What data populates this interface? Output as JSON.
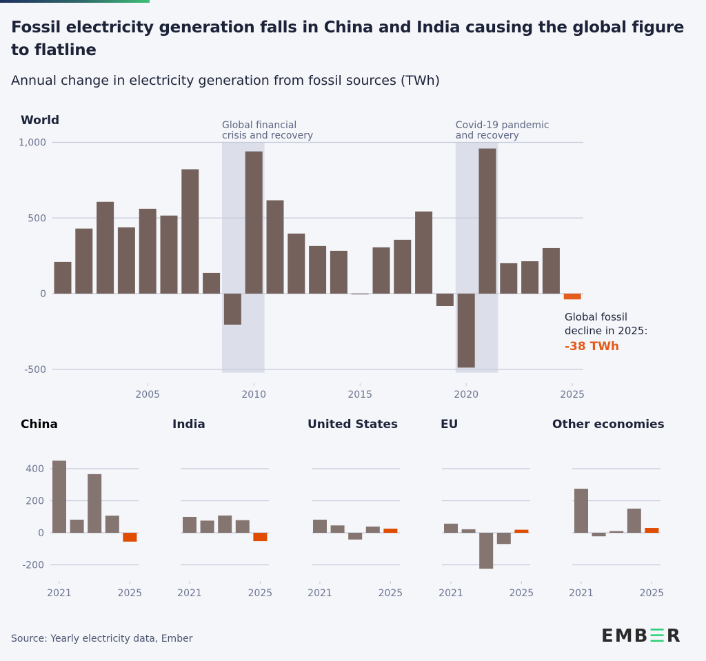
{
  "header": {
    "title": "Fossil electricity generation falls in China and India causing the global figure to flatline",
    "subtitle": "Annual change in electricity generation from fossil sources (TWh)"
  },
  "footer": {
    "source": "Source: Yearly electricity data, Ember",
    "logo": "EMBER"
  },
  "colors": {
    "world_bar": "#715e59",
    "world_highlight": "#e35a1a",
    "small_bar": "#857571",
    "small_highlight": "#e04c00",
    "shade": "#dcdfe9",
    "grid": "#c3c9d8",
    "axis_text": "#6b7590",
    "annotation_text": "#5c6680"
  },
  "chart_data": [
    {
      "type": "bar",
      "title": "World",
      "xlabel": "",
      "ylabel": "TWh",
      "ylim": [
        -500,
        1000
      ],
      "yticks": [
        1000,
        500,
        0,
        -500
      ],
      "ytick_labels": [
        "1,000",
        "500",
        "0",
        "-500"
      ],
      "xticks": [
        2005,
        2010,
        2015,
        2020,
        2025
      ],
      "xtick_labels": [
        "2005",
        "2010",
        "2015",
        "2020",
        "2025"
      ],
      "grid": true,
      "categories": [
        2001,
        2002,
        2003,
        2004,
        2005,
        2006,
        2007,
        2008,
        2009,
        2010,
        2011,
        2012,
        2013,
        2014,
        2015,
        2016,
        2017,
        2018,
        2019,
        2020,
        2021,
        2022,
        2023,
        2024,
        2025
      ],
      "values": [
        210,
        430,
        607,
        438,
        561,
        516,
        822,
        137,
        -205,
        940,
        617,
        397,
        315,
        283,
        -5,
        306,
        356,
        543,
        -82,
        -489,
        959,
        201,
        214,
        301,
        -38
      ],
      "highlight": 2025,
      "shaded_regions": [
        {
          "from": 2008.5,
          "to": 2010.5,
          "label_line1": "Global financial",
          "label_line2": "crisis and recovery"
        },
        {
          "from": 2019.5,
          "to": 2021.5,
          "label_line1": "Covid-19 pandemic",
          "label_line2": "and recovery"
        }
      ],
      "annotation": {
        "line1": "Global fossil",
        "line2": "decline in 2025:",
        "value": "-38 TWh"
      }
    },
    {
      "type": "bar",
      "title": "China",
      "ylim": [
        -200,
        400
      ],
      "yticks": [
        400,
        200,
        0,
        -200
      ],
      "ytick_labels": [
        "400",
        "200",
        "0",
        "-200"
      ],
      "xtick_labels": [
        "2021",
        "2025"
      ],
      "categories": [
        2021,
        2022,
        2023,
        2024,
        2025
      ],
      "values": [
        450,
        82,
        366,
        107,
        -55
      ],
      "highlight": 2025
    },
    {
      "type": "bar",
      "title": "India",
      "ylim": [
        -200,
        400
      ],
      "yticks": [
        400,
        200,
        0,
        -200
      ],
      "xtick_labels": [
        "2021",
        "2025"
      ],
      "categories": [
        2021,
        2022,
        2023,
        2024,
        2025
      ],
      "values": [
        99,
        76,
        108,
        79,
        -52
      ],
      "highlight": 2025
    },
    {
      "type": "bar",
      "title": "United States",
      "ylim": [
        -200,
        400
      ],
      "yticks": [
        400,
        200,
        0,
        -200
      ],
      "xtick_labels": [
        "2021",
        "2025"
      ],
      "categories": [
        2021,
        2022,
        2023,
        2024,
        2025
      ],
      "values": [
        82,
        46,
        -42,
        39,
        26
      ],
      "highlight": 2025
    },
    {
      "type": "bar",
      "title": "EU",
      "ylim": [
        -200,
        400
      ],
      "yticks": [
        400,
        200,
        0,
        -200
      ],
      "xtick_labels": [
        "2021",
        "2025"
      ],
      "categories": [
        2021,
        2022,
        2023,
        2024,
        2025
      ],
      "values": [
        57,
        22,
        -224,
        -70,
        19
      ],
      "highlight": 2025
    },
    {
      "type": "bar",
      "title": "Other economies",
      "ylim": [
        -200,
        400
      ],
      "yticks": [
        400,
        200,
        0,
        -200
      ],
      "xtick_labels": [
        "2021",
        "2025"
      ],
      "categories": [
        2021,
        2022,
        2023,
        2024,
        2025
      ],
      "values": [
        275,
        -22,
        11,
        151,
        30
      ],
      "highlight": 2025
    }
  ]
}
